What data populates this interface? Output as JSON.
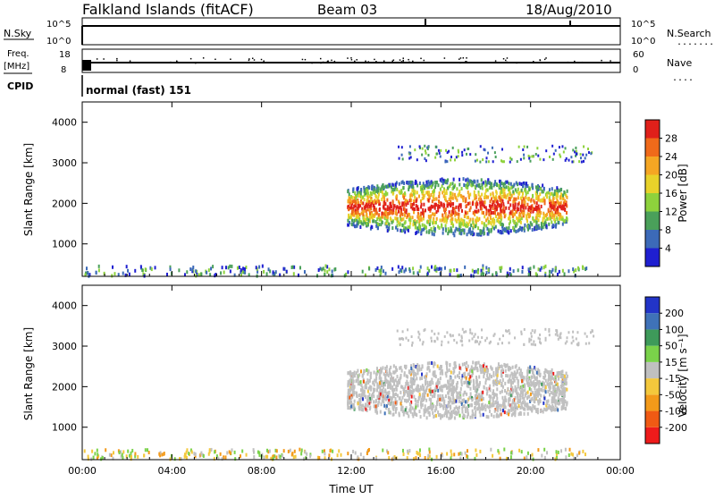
{
  "header": {
    "station": "Falkland Islands (fitACF)",
    "beam": "Beam 03",
    "date": "18/Aug/2010"
  },
  "strips": {
    "nsky": {
      "label": "N.Sky",
      "tick_top": "10^5",
      "tick_bottom": "10^0",
      "right_label": "N.Search",
      "right_tick_top": "10^5",
      "right_tick_bottom": "10^0"
    },
    "freq": {
      "label_line1": "Freq.",
      "label_line2": "[MHz]",
      "tick_top": "18",
      "tick_bottom": "8",
      "right_label": "Nave",
      "right_tick_top": "60",
      "right_tick_bottom": "0"
    },
    "cpid": {
      "label": "CPID",
      "value": "normal (fast) 151"
    }
  },
  "colors": {
    "power_scale": [
      "#1f1fd1",
      "#3c6ab8",
      "#4aa05a",
      "#8ed23c",
      "#e8d22a",
      "#f5a623",
      "#f06a1a",
      "#e0201a"
    ],
    "velocity_scale": [
      "#ee1b1b",
      "#f05a14",
      "#f39a1a",
      "#f4c83c",
      "#c0c0c0",
      "#7ad24a",
      "#3e9a5a",
      "#3f72b8",
      "#2234c8"
    ]
  },
  "chart_data": [
    {
      "type": "heatmap",
      "name": "power",
      "ylabel": "Slant Range [km]",
      "ylim": [
        200,
        4500
      ],
      "yticks": [
        "1000",
        "2000",
        "3000",
        "4000"
      ],
      "xticks": [
        "00:00",
        "04:00",
        "08:00",
        "12:00",
        "16:00",
        "20:00",
        "00:00"
      ],
      "colorbar": {
        "label": "Power [dB]",
        "ticks": [
          "4",
          "8",
          "12",
          "16",
          "20",
          "24",
          "28"
        ],
        "range": [
          0,
          32
        ]
      }
    },
    {
      "type": "heatmap",
      "name": "velocity",
      "ylabel": "Slant Range [km]",
      "ylim": [
        200,
        4500
      ],
      "yticks": [
        "1000",
        "2000",
        "3000",
        "4000"
      ],
      "xticks": [
        "00:00",
        "04:00",
        "08:00",
        "12:00",
        "16:00",
        "20:00",
        "00:00"
      ],
      "xlabel": "Time UT",
      "colorbar": {
        "label": "Velocity [m s⁻¹]",
        "ticks": [
          "-200",
          "-100",
          "-50",
          "-15",
          "15",
          "50",
          "100",
          "200"
        ]
      }
    }
  ]
}
